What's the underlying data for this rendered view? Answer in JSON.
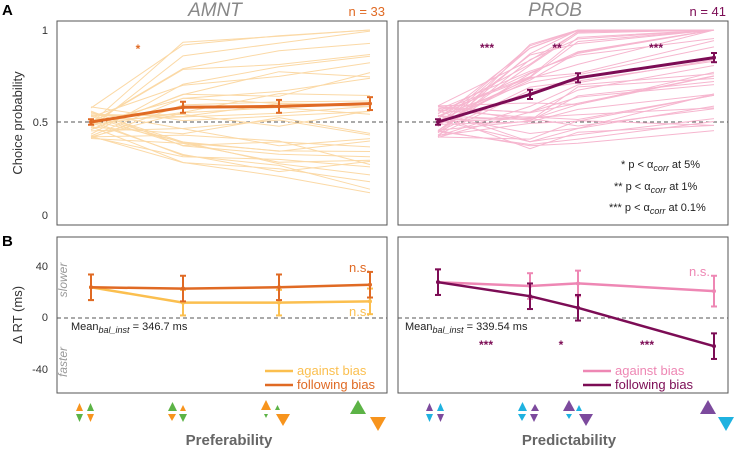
{
  "panel_letters": {
    "top": "A",
    "bottom": "B"
  },
  "x_axis": {
    "left_label": "Preferability",
    "right_label": "Predictability"
  },
  "y_axis": {
    "top_label": "Choice probability",
    "top_ticks": [
      "1",
      "0.5",
      "0"
    ],
    "bottom_label": "Δ RT (ms)",
    "bottom_ticks": [
      "40",
      "0",
      "-40"
    ],
    "slower": "slower",
    "faster": "faster"
  },
  "panels": {
    "amnt": {
      "title": "AMNT",
      "n_label": "n = 33",
      "sig_top": [
        "*"
      ],
      "ns_against": "n.s.",
      "ns_following": "n.s.",
      "mean_prefix": "Mean",
      "mean_sub": "bal_inst",
      "mean_value": " = 346.7 ms",
      "legend_against": "against bias",
      "legend_following": "following bias"
    },
    "prob": {
      "title": "PROB",
      "n_label": "n = 41",
      "sig_top": [
        "***",
        "**",
        "***"
      ],
      "sig_bottom": [
        "***",
        "*",
        "***"
      ],
      "ns_against": "n.s.",
      "mean_prefix": "Mean",
      "mean_sub": "bal_inst",
      "mean_value": " = 339.54 ms",
      "legend_against": "against bias",
      "legend_following": "following bias"
    }
  },
  "stats_note": {
    "lines": [
      {
        "stars": "* p < α",
        "sub": "corr",
        "tail": " at 5%"
      },
      {
        "stars": "** p < α",
        "sub": "corr",
        "tail": " at 1%"
      },
      {
        "stars": "*** p < α",
        "sub": "corr",
        "tail": " at 0.1%"
      }
    ]
  },
  "colors": {
    "amnt_main": "#e06a24",
    "amnt_light": "#fbd9a6",
    "amnt_against": "#fbbf4f",
    "prob_main": "#7c0c55",
    "prob_light": "#f6b6cf",
    "prob_against": "#ee87b4",
    "tri_orange": "#f7941d",
    "tri_green": "#5cb346",
    "tri_purple": "#7c4a9d",
    "tri_blue": "#1fb2e0"
  },
  "chart_data": [
    {
      "type": "line",
      "title": "AMNT",
      "panel": "A",
      "xlabel": "Preferability",
      "ylabel": "Choice probability",
      "x": [
        1,
        2,
        3,
        4
      ],
      "ylim": [
        0,
        1
      ],
      "series": [
        {
          "name": "mean",
          "values": [
            0.5,
            0.58,
            0.585,
            0.6
          ],
          "errors": [
            0.015,
            0.03,
            0.035,
            0.035
          ]
        }
      ],
      "reference_line": 0.5,
      "annotations": [
        "*",
        "n = 33"
      ]
    },
    {
      "type": "line",
      "title": "PROB",
      "panel": "A",
      "xlabel": "Predictability",
      "ylabel": "Choice probability",
      "x": [
        1,
        2,
        3,
        4
      ],
      "ylim": [
        0,
        1
      ],
      "series": [
        {
          "name": "mean",
          "values": [
            0.5,
            0.65,
            0.74,
            0.85
          ],
          "errors": [
            0.015,
            0.025,
            0.025,
            0.025
          ]
        }
      ],
      "reference_line": 0.5,
      "annotations": [
        "***",
        "**",
        "***",
        "n = 41"
      ]
    },
    {
      "type": "line",
      "title": "AMNT",
      "panel": "B",
      "xlabel": "Preferability",
      "ylabel": "Δ RT (ms)",
      "x": [
        1,
        2,
        3,
        4
      ],
      "ylim": [
        -55,
        55
      ],
      "series": [
        {
          "name": "against bias",
          "values": [
            24,
            12,
            12,
            13
          ],
          "errors": [
            10,
            10,
            10,
            10
          ]
        },
        {
          "name": "following bias",
          "values": [
            24,
            23,
            24,
            26
          ],
          "errors": [
            10,
            10,
            10,
            10
          ]
        }
      ],
      "reference_line": 0,
      "annotations": [
        "n.s.",
        "n.s.",
        "Mean_bal_inst = 346.7 ms"
      ]
    },
    {
      "type": "line",
      "title": "PROB",
      "panel": "B",
      "xlabel": "Predictability",
      "ylabel": "Δ RT (ms)",
      "x": [
        1,
        2,
        3,
        4
      ],
      "ylim": [
        -55,
        55
      ],
      "series": [
        {
          "name": "against bias",
          "values": [
            28,
            25,
            27,
            21
          ],
          "errors": [
            10,
            10,
            10,
            12
          ]
        },
        {
          "name": "following bias",
          "values": [
            28,
            17,
            8,
            -22
          ],
          "errors": [
            10,
            10,
            10,
            10
          ]
        }
      ],
      "reference_line": 0,
      "annotations": [
        "n.s.",
        "***",
        "*",
        "***",
        "Mean_bal_inst = 339.54 ms"
      ]
    }
  ]
}
